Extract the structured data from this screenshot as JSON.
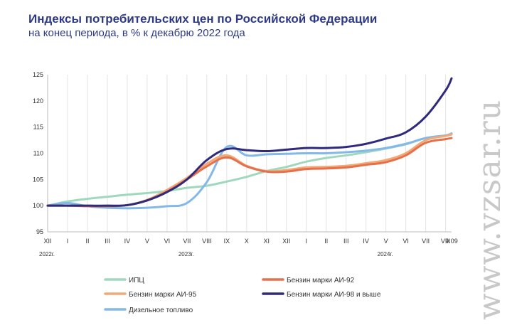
{
  "header": {
    "title": "Индексы потребительских цен по Российской Федерации",
    "subtitle": "на конец периода, в % к декабрю 2022 года"
  },
  "watermark": {
    "text": "www.vzsar.ru"
  },
  "chart_data": {
    "type": "line",
    "title": "Индексы потребительских цен по Российской Федерации",
    "subtitle": "на конец периода, в % к декабрю 2022 года",
    "ylim": [
      95,
      125
    ],
    "yticks": [
      95,
      100,
      105,
      110,
      115,
      120,
      125
    ],
    "x_labels": [
      "XII",
      "I",
      "II",
      "III",
      "IV",
      "V",
      "VI",
      "VII",
      "VIII",
      "IX",
      "X",
      "XI",
      "XII",
      "I",
      "II",
      "III",
      "IV",
      "V",
      "VI",
      "VII",
      "VIII",
      "9.09"
    ],
    "year_labels": [
      {
        "label": "2022г.",
        "x": 0
      },
      {
        "label": "2023г.",
        "x": 7
      },
      {
        "label": "2024г.",
        "x": 17
      }
    ],
    "grid": "vertical",
    "legend_position": "bottom",
    "x": [
      0,
      1,
      2,
      3,
      4,
      5,
      6,
      7,
      8,
      9,
      10,
      11,
      12,
      13,
      14,
      15,
      16,
      17,
      18,
      19,
      20,
      20.3
    ],
    "series": [
      {
        "name": "ИПЦ",
        "color": "#9fd9bd",
        "values": [
          100.0,
          100.8,
          101.3,
          101.7,
          102.1,
          102.4,
          102.8,
          103.4,
          103.8,
          104.6,
          105.5,
          106.6,
          107.4,
          108.4,
          109.1,
          109.6,
          110.2,
          110.9,
          111.7,
          112.9,
          113.4,
          113.6
        ]
      },
      {
        "name": "Бензин марки АИ-92",
        "color": "#e5704a",
        "values": [
          100.0,
          100.0,
          99.9,
          99.9,
          100.1,
          101.0,
          102.7,
          105.0,
          107.5,
          109.2,
          107.5,
          106.5,
          106.5,
          107.0,
          107.1,
          107.3,
          107.8,
          108.3,
          109.6,
          112.0,
          112.7,
          112.9
        ]
      },
      {
        "name": "Бензин марки АИ-95",
        "color": "#f3a877",
        "values": [
          100.0,
          100.0,
          99.9,
          99.9,
          100.1,
          101.1,
          103.0,
          105.3,
          108.0,
          109.6,
          107.6,
          106.6,
          106.8,
          107.3,
          107.4,
          107.6,
          108.1,
          108.7,
          110.0,
          112.5,
          113.3,
          113.6
        ]
      },
      {
        "name": "Бензин марки АИ-98 и выше",
        "color": "#2f2a7b",
        "values": [
          100.0,
          100.0,
          100.0,
          100.0,
          100.1,
          101.0,
          102.6,
          105.0,
          108.7,
          110.8,
          110.6,
          110.4,
          110.7,
          111.0,
          111.0,
          111.2,
          111.8,
          112.8,
          114.0,
          117.0,
          122.0,
          124.3
        ]
      },
      {
        "name": "Дизельное топливо",
        "color": "#83b8e8",
        "values": [
          100.0,
          100.5,
          99.9,
          99.6,
          99.5,
          99.6,
          99.9,
          100.5,
          104.5,
          111.2,
          109.6,
          109.8,
          109.9,
          110.0,
          110.0,
          110.2,
          110.5,
          111.0,
          111.8,
          112.9,
          113.4,
          113.8
        ]
      }
    ]
  }
}
